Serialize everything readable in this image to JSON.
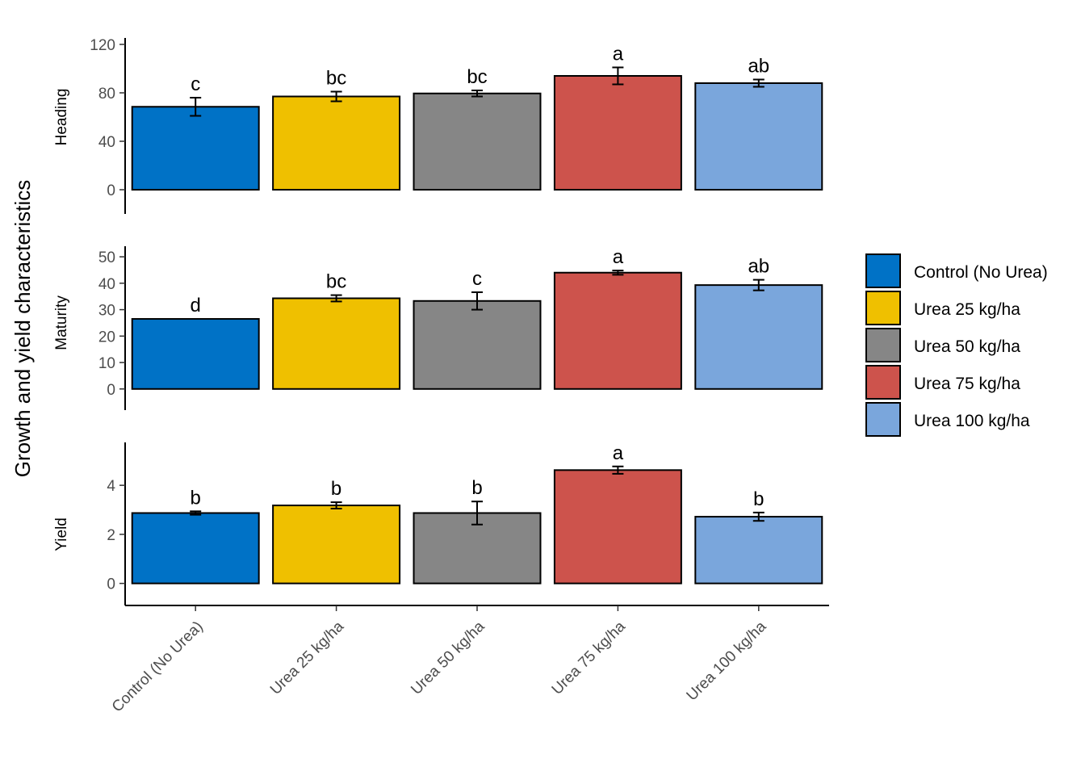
{
  "chart_data": {
    "type": "bar",
    "ylabel": "Growth and yield characteristics",
    "categories": [
      "Control (No Urea)",
      "Urea 25 kg/ha",
      "Urea 50 kg/ha",
      "Urea 75 kg/ha",
      "Urea 100 kg/ha"
    ],
    "colors": [
      "#0072C6",
      "#EFC000",
      "#868686",
      "#CD534C",
      "#7AA6DC"
    ],
    "legend": {
      "placement": "right",
      "entries": [
        "Control (No Urea)",
        "Urea 25 kg/ha",
        "Urea 50 kg/ha",
        "Urea 75 kg/ha",
        "Urea 100 kg/ha"
      ]
    },
    "grid": false,
    "panels": [
      {
        "name": "Heading",
        "ylim": [
          -20,
          120
        ],
        "yticks": [
          0,
          40,
          80,
          120
        ],
        "values": [
          68.5,
          77,
          79.5,
          94,
          88
        ],
        "errors": [
          7.5,
          4,
          2.5,
          7,
          3
        ],
        "letters": [
          "c",
          "bc",
          "bc",
          "a",
          "ab"
        ]
      },
      {
        "name": "Maturity",
        "ylim": [
          -8,
          54
        ],
        "yticks": [
          0,
          10,
          20,
          30,
          40,
          50
        ],
        "values": [
          26.5,
          34.3,
          33.3,
          44,
          39.3
        ],
        "errors": [
          0,
          1.2,
          3.3,
          0.8,
          2
        ],
        "letters": [
          "d",
          "bc",
          "c",
          "a",
          "ab"
        ]
      },
      {
        "name": "Yield",
        "ylim": [
          -0.9,
          5.75
        ],
        "yticks": [
          0,
          2,
          4
        ],
        "values": [
          2.87,
          3.18,
          2.87,
          4.62,
          2.72
        ],
        "errors": [
          0.07,
          0.13,
          0.47,
          0.15,
          0.17
        ],
        "letters": [
          "b",
          "b",
          "b",
          "a",
          "b"
        ]
      }
    ]
  }
}
